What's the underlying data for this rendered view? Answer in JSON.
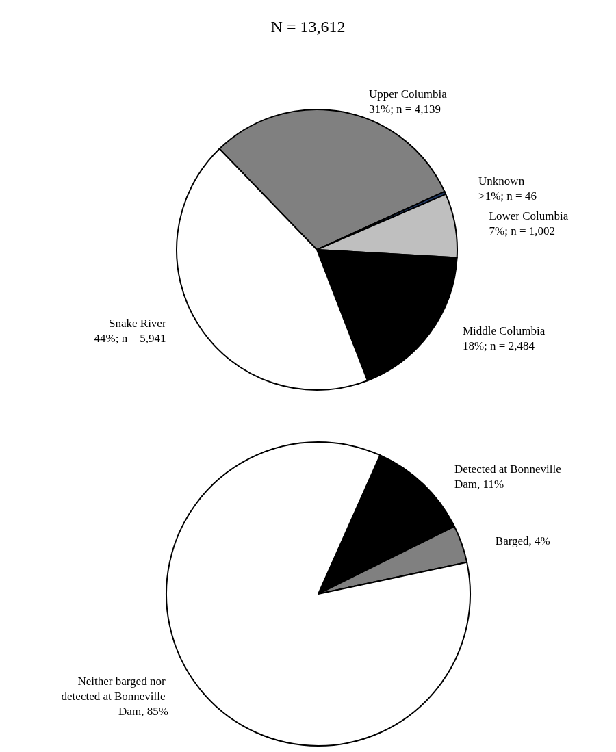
{
  "chart_data": [
    {
      "type": "pie",
      "title": "N = 13,612",
      "categories": [
        "Upper Columbia",
        "Unknown",
        "Lower Columbia",
        "Middle Columbia",
        "Snake River"
      ],
      "values": [
        4139,
        46,
        1002,
        2484,
        5941
      ],
      "colors": [
        "#808080",
        "#1f3864",
        "#bfbfbf",
        "#000000",
        "#ffffff"
      ],
      "value_labels": [
        "31%; n = 4,139",
        ">1%; n = 46",
        "7%; n = 1,002",
        "18%; n = 2,484",
        "44%; n = 5,941"
      ],
      "legend": false
    },
    {
      "type": "pie",
      "categories": [
        "Detected at Bonneville Dam",
        "Barged",
        "Neither barged nor detected at Bonneville Dam"
      ],
      "values": [
        11,
        4,
        85
      ],
      "colors": [
        "#000000",
        "#808080",
        "#ffffff"
      ],
      "value_labels": [
        "11%",
        "4%",
        "85%"
      ],
      "legend": false
    }
  ]
}
